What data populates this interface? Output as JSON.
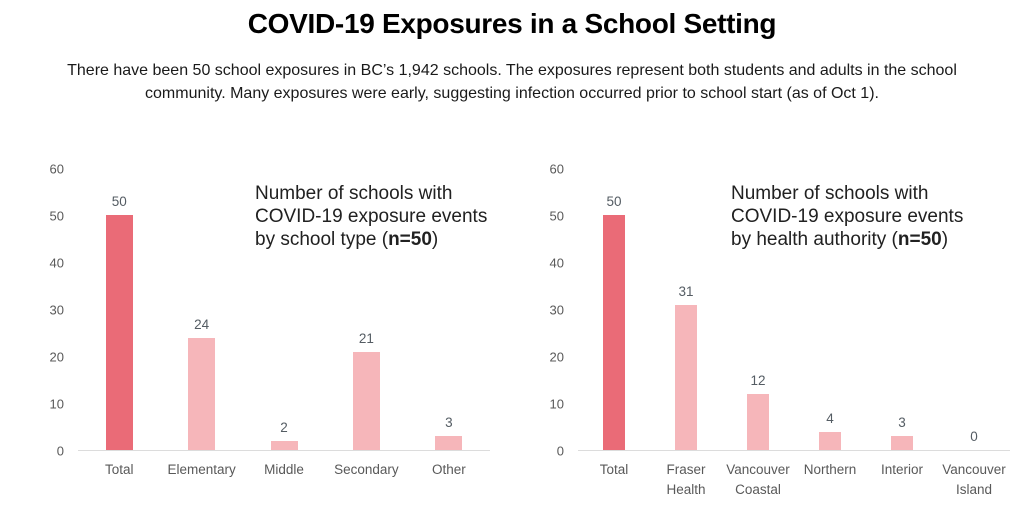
{
  "page": {
    "title": "COVID-19 Exposures in a School Setting",
    "subtitle": "There have been 50 school exposures in BC’s 1,942 schools. The exposures represent both students and adults in the school community. Many exposures were early, suggesting infection occurred prior to school start (as of Oct 1)."
  },
  "colors": {
    "highlight_bar": "#ea6b77",
    "bar": "#f6b6ba",
    "axis_text": "#595959",
    "axis_line": "#dcdcdc",
    "annotation_text": "#212121"
  },
  "chart_data": [
    {
      "type": "bar",
      "name": "schools-with-exposures-by-school-type",
      "annotation_lines": [
        "Number of schools with",
        "COVID-19 exposure events"
      ],
      "annotation_tail_prefix": "by school type (",
      "annotation_tail_bold": "n=50",
      "annotation_tail_suffix": ")",
      "categories": [
        "Total",
        "Elementary",
        "Middle",
        "Secondary",
        "Other"
      ],
      "values": [
        50,
        24,
        2,
        21,
        3
      ],
      "highlighted_index": 0,
      "ylim": [
        0,
        60
      ],
      "yticks": [
        0,
        10,
        20,
        30,
        40,
        50,
        60
      ],
      "grid": false,
      "legend": "none"
    },
    {
      "type": "bar",
      "name": "schools-with-exposures-by-health-authority",
      "annotation_lines": [
        "Number of schools with",
        "COVID-19 exposure events"
      ],
      "annotation_tail_prefix": "by health authority (",
      "annotation_tail_bold": "n=50",
      "annotation_tail_suffix": ")",
      "categories": [
        "Total",
        "Fraser Health",
        "Vancouver Coastal",
        "Northern",
        "Interior",
        "Vancouver Island"
      ],
      "values": [
        50,
        31,
        12,
        4,
        3,
        0
      ],
      "highlighted_index": 0,
      "ylim": [
        0,
        60
      ],
      "yticks": [
        0,
        10,
        20,
        30,
        40,
        50,
        60
      ],
      "grid": false,
      "legend": "none"
    }
  ]
}
